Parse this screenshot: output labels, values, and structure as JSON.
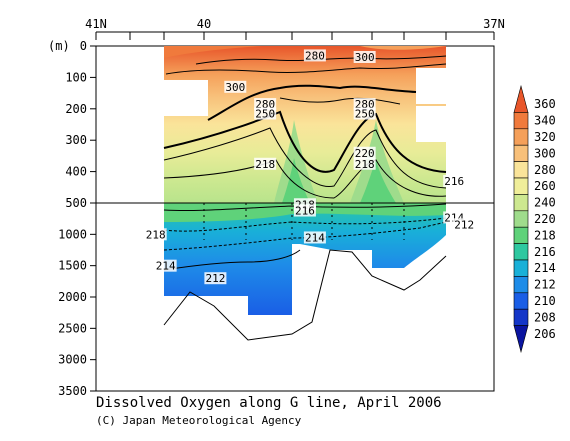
{
  "chart_data": {
    "type": "contour",
    "title": "Dissolved Oxygen along G line, April 2006",
    "credit": "(C) Japan Meteorological Agency",
    "ylabel": "(m)",
    "x_ticks": [
      "41N",
      "40",
      "37N"
    ],
    "y_ticks_upper": [
      0,
      100,
      200,
      300,
      400,
      500
    ],
    "y_ticks_lower": [
      1000,
      1500,
      2000,
      2500,
      3000,
      3500
    ],
    "y_split_depth": 500,
    "colorbar": {
      "levels": [
        360,
        340,
        320,
        300,
        280,
        260,
        240,
        220,
        218,
        216,
        214,
        212,
        210,
        208,
        206
      ],
      "colors": [
        "#e8562a",
        "#f07a3c",
        "#f5a05a",
        "#f8c07a",
        "#fae49a",
        "#f0ee9a",
        "#cde890",
        "#9fdc8c",
        "#5fd27a",
        "#2ec8a0",
        "#19b0d8",
        "#1e8ce8",
        "#1a5ee6",
        "#1436c8",
        "#0a14a0"
      ]
    },
    "contour_labels": [
      {
        "text": "280",
        "depth": 30,
        "lat": 38.8
      },
      {
        "text": "300",
        "depth": 35,
        "lat": 38.3
      },
      {
        "text": "300",
        "depth": 130,
        "lat": 39.6
      },
      {
        "text": "280",
        "depth": 185,
        "lat": 39.3
      },
      {
        "text": "250",
        "depth": 215,
        "lat": 39.3
      },
      {
        "text": "280",
        "depth": 185,
        "lat": 38.3
      },
      {
        "text": "250",
        "depth": 215,
        "lat": 38.3
      },
      {
        "text": "220",
        "depth": 340,
        "lat": 38.3
      },
      {
        "text": "218",
        "depth": 375,
        "lat": 38.3
      },
      {
        "text": "218",
        "depth": 375,
        "lat": 39.3
      },
      {
        "text": "216",
        "depth": 430,
        "lat": 37.4
      },
      {
        "text": "218",
        "depth": 520,
        "lat": 38.9
      },
      {
        "text": "216",
        "depth": 620,
        "lat": 38.9
      },
      {
        "text": "214",
        "depth": 730,
        "lat": 37.4
      },
      {
        "text": "212",
        "depth": 840,
        "lat": 37.3
      },
      {
        "text": "218",
        "depth": 1000,
        "lat": 40.4
      },
      {
        "text": "214",
        "depth": 1050,
        "lat": 38.8
      },
      {
        "text": "214",
        "depth": 1500,
        "lat": 40.3
      },
      {
        "text": "212",
        "depth": 1700,
        "lat": 39.8
      }
    ]
  }
}
